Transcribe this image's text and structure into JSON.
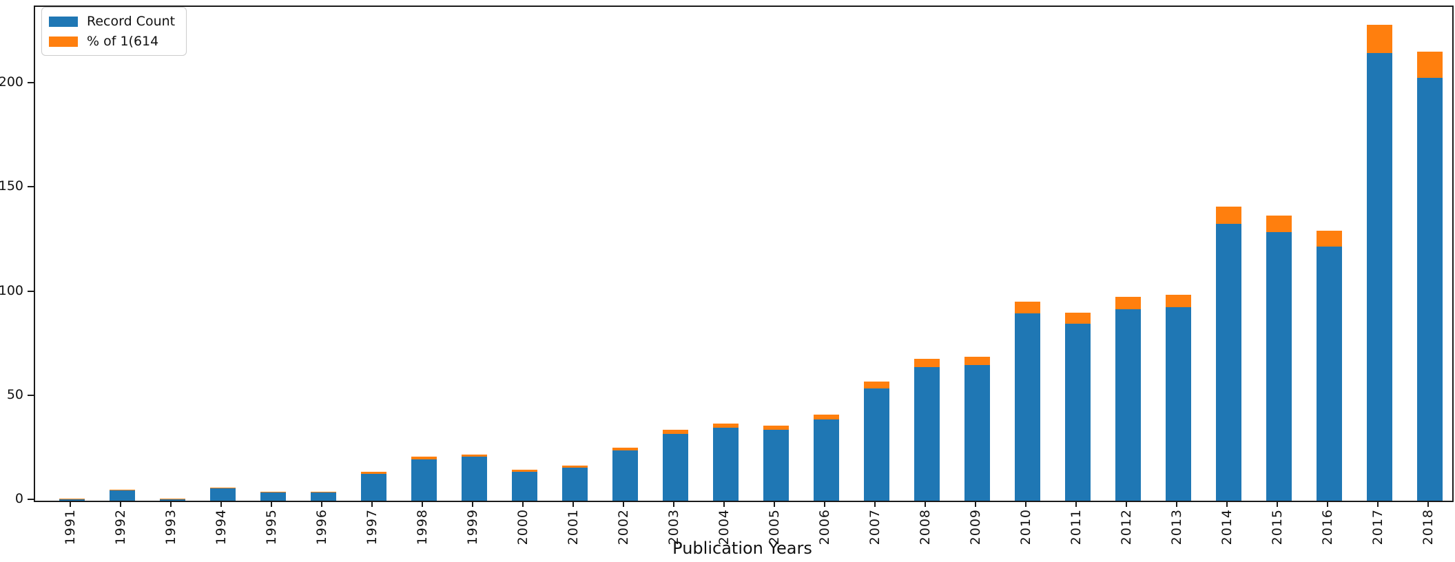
{
  "figure": {
    "background_color": "#ffffff",
    "spine_color": "#1a1a1a",
    "text_color": "#111111"
  },
  "legend": {
    "position": "upper left",
    "border_color": "#cccccc",
    "items": [
      {
        "label": "Record Count",
        "color": "#1f77b4",
        "swatch": "blue-rect-swatch"
      },
      {
        "label": "% of 1(614",
        "color": "#ff7f0e",
        "swatch": "orange-rect-swatch"
      }
    ]
  },
  "chart_data": {
    "type": "bar",
    "stacked": true,
    "title": "",
    "xlabel": "Publication Years",
    "ylabel": "",
    "grid": false,
    "legend_position": "upper left",
    "ylim": [
      0,
      237
    ],
    "yticks": [
      0,
      50,
      100,
      150,
      200
    ],
    "total_records": 1614,
    "categories": [
      "1991",
      "1992",
      "1993",
      "1994",
      "1995",
      "1996",
      "1997",
      "1998",
      "1999",
      "2000",
      "2001",
      "2002",
      "2003",
      "2004",
      "2005",
      "2006",
      "2007",
      "2008",
      "2009",
      "2010",
      "2011",
      "2012",
      "2013",
      "2014",
      "2015",
      "2016",
      "2017",
      "2018"
    ],
    "series": [
      {
        "name": "Record Count",
        "color": "#1f77b4",
        "values": [
          1,
          5,
          1,
          6,
          4,
          4,
          13,
          20,
          21,
          14,
          16,
          24,
          32,
          35,
          34,
          39,
          54,
          64,
          65,
          90,
          85,
          92,
          93,
          133,
          129,
          122,
          215,
          203
        ]
      },
      {
        "name": "% of 1(614",
        "color": "#ff7f0e",
        "values": [
          0.06,
          0.31,
          0.06,
          0.37,
          0.25,
          0.25,
          0.81,
          1.24,
          1.3,
          0.87,
          0.99,
          1.49,
          1.98,
          2.17,
          2.11,
          2.42,
          3.35,
          3.97,
          4.03,
          5.58,
          5.27,
          5.7,
          5.76,
          8.24,
          7.99,
          7.56,
          13.32,
          12.58
        ]
      }
    ]
  }
}
